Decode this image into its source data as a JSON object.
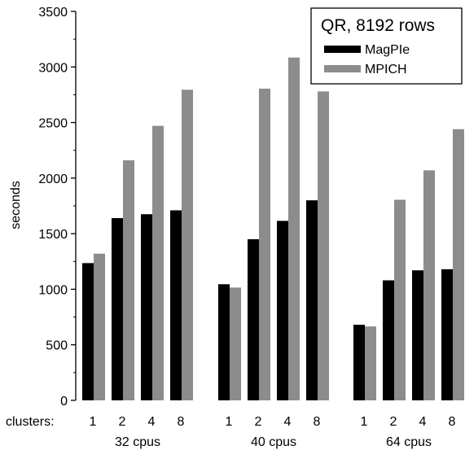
{
  "chart_data": {
    "type": "bar",
    "title": "QR, 8192 rows",
    "xlabel": "clusters:",
    "ylabel": "seconds",
    "ylim": [
      0,
      3500
    ],
    "yticks": [
      0,
      500,
      1000,
      1500,
      2000,
      2500,
      3000,
      3500
    ],
    "legend_position": "top-right",
    "groups": [
      {
        "label": "32 cpus",
        "clusters": [
          "1",
          "2",
          "4",
          "8"
        ],
        "series": [
          {
            "name": "MagPIe",
            "values": [
              1235,
              1640,
              1675,
              1710
            ]
          },
          {
            "name": "MPICH",
            "values": [
              1320,
              2160,
              2470,
              2795
            ]
          }
        ]
      },
      {
        "label": "40 cpus",
        "clusters": [
          "1",
          "2",
          "4",
          "8"
        ],
        "series": [
          {
            "name": "MagPIe",
            "values": [
              1045,
              1450,
              1615,
              1800
            ]
          },
          {
            "name": "MPICH",
            "values": [
              1015,
              2805,
              3085,
              2780
            ]
          }
        ]
      },
      {
        "label": "64 cpus",
        "clusters": [
          "1",
          "2",
          "4",
          "8"
        ],
        "series": [
          {
            "name": "MagPIe",
            "values": [
              680,
              1080,
              1170,
              1180
            ]
          },
          {
            "name": "MPICH",
            "values": [
              665,
              1805,
              2070,
              2440
            ]
          }
        ]
      }
    ],
    "legend": [
      {
        "name": "MagPIe",
        "color": "#000000"
      },
      {
        "name": "MPICH",
        "color": "#8c8c8c"
      }
    ],
    "colors": {
      "MagPIe": "#000000",
      "MPICH": "#8c8c8c"
    }
  }
}
